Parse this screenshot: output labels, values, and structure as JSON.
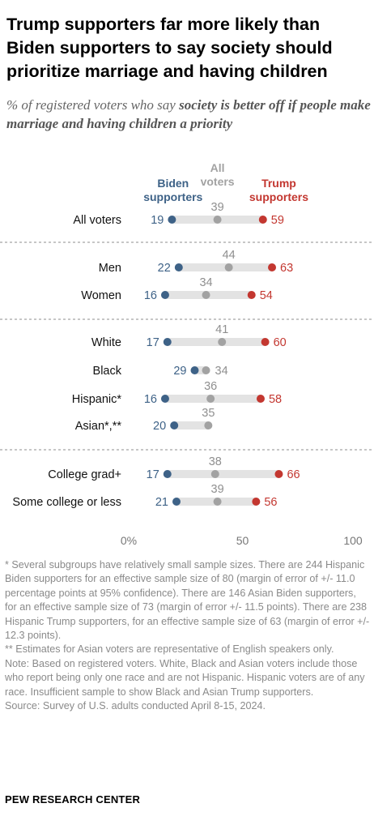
{
  "title": "Trump supporters far more likely than Biden supporters to say society should prioritize marriage and having children",
  "subtitle_pre": "% of registered voters who say ",
  "subtitle_bold": "society is better off if people make marriage and having children a priority",
  "colors": {
    "biden": "#3e6287",
    "all": "#a2a2a2",
    "trump": "#c33730",
    "track": "#e3e3e3"
  },
  "chart_data": {
    "type": "dot",
    "series": [
      {
        "key": "biden",
        "name": "Biden supporters"
      },
      {
        "key": "all",
        "name": "All voters"
      },
      {
        "key": "trump",
        "name": "Trump supporters"
      }
    ],
    "categories": [
      "All voters",
      "Men",
      "Women",
      "White",
      "Black",
      "Hispanic*",
      "Asian*,**",
      "College grad+",
      "Some college or less"
    ],
    "biden": [
      19,
      22,
      16,
      17,
      29,
      16,
      20,
      17,
      21
    ],
    "all": [
      39,
      44,
      34,
      41,
      34,
      36,
      35,
      38,
      39
    ],
    "trump": [
      59,
      63,
      54,
      60,
      null,
      58,
      null,
      66,
      56
    ],
    "xlim": [
      0,
      100
    ],
    "ticks": [
      0,
      50,
      100
    ],
    "tick_labels": [
      "0%",
      "50",
      "100"
    ],
    "groups": [
      [
        0
      ],
      [
        1,
        2
      ],
      [
        3,
        4,
        5,
        6
      ],
      [
        7,
        8
      ]
    ]
  },
  "notes": [
    "* Several subgroups have relatively small sample sizes. There are 244 Hispanic Biden supporters for an effective sample size of 80 (margin of error of +/- 11.0 percentage points at 95% confidence). There are 146 Asian Biden supporters, for an effective sample size of 73 (margin of error +/- 11.5 points). There are 238 Hispanic Trump supporters, for an effective sample size of 63 (margin of error +/- 12.3 points).",
    "** Estimates for Asian voters are representative of English speakers only.",
    "Note: Based on registered voters. White, Black and Asian voters include those who report being only one race and are not Hispanic. Hispanic voters are of any race. Insufficient sample to show Black and Asian Trump supporters.",
    "Source: Survey of U.S. adults conducted April 8-15, 2024."
  ],
  "source_org": "PEW RESEARCH CENTER"
}
